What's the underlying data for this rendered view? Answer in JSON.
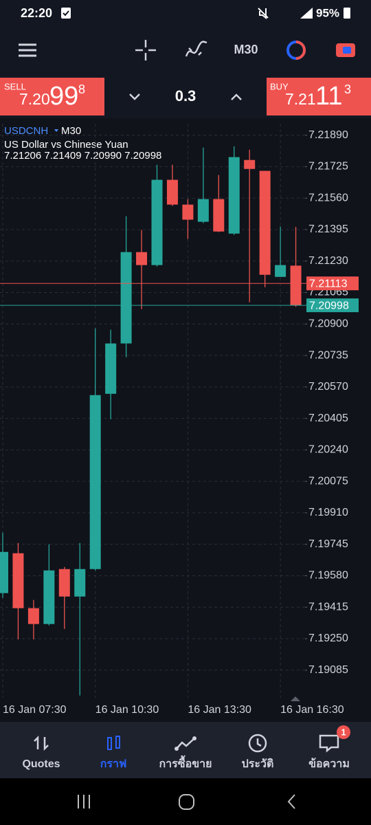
{
  "status_bar": {
    "time": "22:20",
    "battery": "95%"
  },
  "toolbar": {
    "timeframe": "M30"
  },
  "trade_panel": {
    "sell": {
      "label": "SELL",
      "price_main": "7.20",
      "price_big": "99",
      "price_small": "8"
    },
    "volume": "0.3",
    "buy": {
      "label": "BUY",
      "price_main": "7.21",
      "price_big": "11",
      "price_small": "3"
    }
  },
  "chart_data": {
    "type": "candlestick",
    "symbol": "USDCNH",
    "timeframe": "M30",
    "description": "US Dollar vs Chinese Yuan",
    "ohlc_text": "7.21206 7.21409 7.20990 7.20998",
    "categories": [
      "16 Jan 07:30",
      null,
      null,
      null,
      null,
      null,
      "16 Jan 10:30",
      null,
      null,
      null,
      null,
      null,
      "16 Jan 13:30",
      null,
      null,
      null,
      null,
      null,
      "16 Jan 16:30",
      null
    ],
    "open": [
      7.19489,
      7.19698,
      7.1941,
      7.19327,
      7.19615,
      7.19471,
      7.19615,
      7.20534,
      7.20798,
      7.21277,
      7.21209,
      7.21656,
      7.21526,
      7.21436,
      7.21555,
      7.21374,
      7.2176,
      7.21703,
      7.21147,
      7.21206
    ],
    "high": [
      7.19806,
      7.19752,
      7.19453,
      7.19745,
      7.19626,
      7.19752,
      7.20877,
      7.2087,
      7.21465,
      7.21393,
      7.21735,
      7.21735,
      7.21555,
      7.21825,
      7.21681,
      7.21832,
      7.21814,
      7.21703,
      7.21411,
      7.21409
    ],
    "low": [
      7.19464,
      7.19247,
      7.19247,
      7.19319,
      7.19301,
      7.18952,
      7.19608,
      7.20401,
      7.20726,
      7.20978,
      7.21201,
      7.21519,
      7.21346,
      7.21429,
      7.21382,
      7.21367,
      7.21014,
      7.21093,
      7.21147,
      7.2099
    ],
    "close": [
      7.19705,
      7.1941,
      7.19327,
      7.19608,
      7.19471,
      7.19615,
      7.20527,
      7.20798,
      7.21277,
      7.21209,
      7.21656,
      7.21526,
      7.21447,
      7.21555,
      7.21385,
      7.21775,
      7.21713,
      7.21158,
      7.21209,
      7.20998
    ],
    "up_color": "#26a69a",
    "down_color": "#ef5350",
    "bid": 7.20998,
    "bid_color": "#26a69a",
    "ask": 7.21113,
    "ask_color": "#ef5350",
    "ylim": [
      7.1894,
      7.2195
    ],
    "yticks": [
      {
        "value": 7.2189,
        "label": "7.21890"
      },
      7.21725,
      {
        "value": 7.2156,
        "label": "7.21560"
      },
      7.21395,
      {
        "value": 7.2123,
        "label": "7.21230"
      },
      7.21065,
      {
        "value": 7.209,
        "label": "7.20900"
      },
      7.20735,
      {
        "value": 7.2057,
        "label": "7.20570"
      },
      7.20405,
      {
        "value": 7.2024,
        "label": "7.20240"
      },
      7.20075,
      {
        "value": 7.1991,
        "label": "7.19910"
      },
      7.19745,
      {
        "value": 7.1958,
        "label": "7.19580"
      },
      7.19415,
      {
        "value": 7.1925,
        "label": "7.19250"
      },
      7.19085
    ],
    "grid": true
  },
  "bottom_nav": {
    "items": [
      "Quotes",
      "กราฟ",
      "การซื้อขาย",
      "ประวัติ",
      "ข้อความ"
    ],
    "badge": "1"
  }
}
